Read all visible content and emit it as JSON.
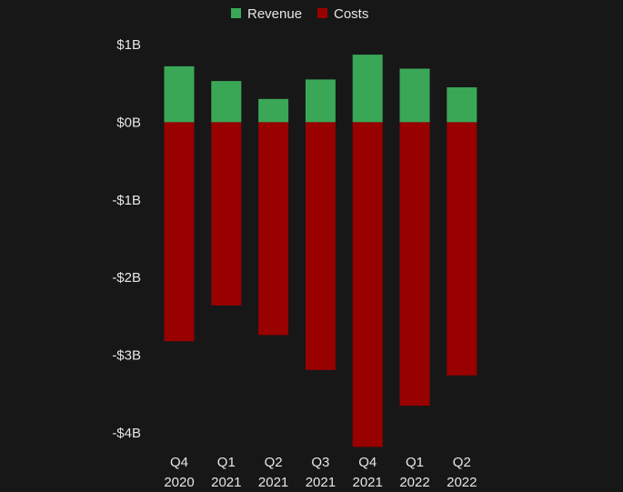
{
  "chart_data": {
    "type": "bar",
    "stacked": true,
    "title": "",
    "xlabel": "",
    "ylabel": "",
    "categories": [
      [
        "Q4",
        "2020"
      ],
      [
        "Q1",
        "2021"
      ],
      [
        "Q2",
        "2021"
      ],
      [
        "Q3",
        "2021"
      ],
      [
        "Q4",
        "2021"
      ],
      [
        "Q1",
        "2022"
      ],
      [
        "Q2",
        "2022"
      ]
    ],
    "series": [
      {
        "name": "Revenue",
        "color": "#3aa757",
        "values": [
          0.72,
          0.53,
          0.3,
          0.55,
          0.87,
          0.69,
          0.45
        ]
      },
      {
        "name": "Costs",
        "color": "#990000",
        "values": [
          -2.82,
          -2.36,
          -2.74,
          -3.19,
          -4.18,
          -3.65,
          -3.26
        ]
      }
    ],
    "ylim": [
      -4,
      1
    ],
    "yticks": [
      {
        "value": 1,
        "label": "$1B"
      },
      {
        "value": 0,
        "label": "$0B"
      },
      {
        "value": -1,
        "label": "-$1B"
      },
      {
        "value": -2,
        "label": "-$2B"
      },
      {
        "value": -3,
        "label": "-$3B"
      },
      {
        "value": -4,
        "label": "-$4B"
      }
    ],
    "grid": false,
    "legend_position": "top-center",
    "text_color": "#e6e6e6",
    "background": "#171717"
  }
}
